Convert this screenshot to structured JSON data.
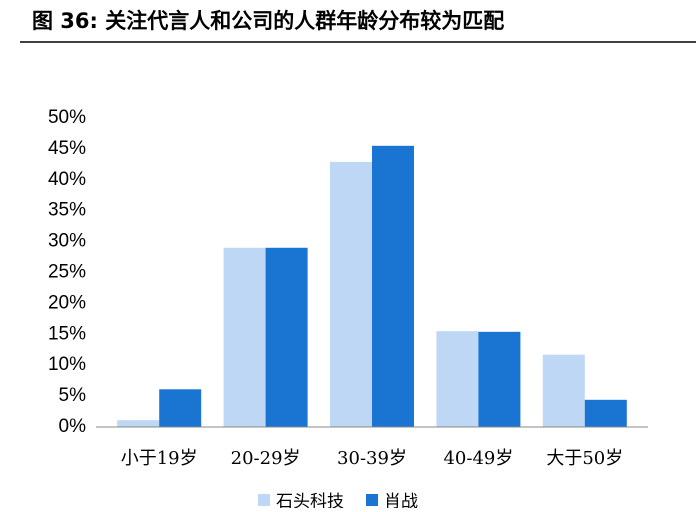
{
  "chart_data": {
    "type": "bar",
    "title": "图 36:  关注代言人和公司的人群年龄分布较为匹配",
    "categories": [
      "小于19岁",
      "20-29岁",
      "30-39岁",
      "40-49岁",
      "大于50岁"
    ],
    "series": [
      {
        "name": "石头科技",
        "color": "#bdd7f5",
        "values": [
          1.1,
          29.0,
          42.9,
          15.5,
          11.7
        ]
      },
      {
        "name": "肖战",
        "color": "#1a75d2",
        "values": [
          6.1,
          29.0,
          45.5,
          15.4,
          4.4
        ]
      }
    ],
    "ylim": [
      0,
      50
    ],
    "yticks": [
      {
        "value": 0,
        "label": "0%"
      },
      {
        "value": 5,
        "label": "5%"
      },
      {
        "value": 10,
        "label": "10%"
      },
      {
        "value": 15,
        "label": "15%"
      },
      {
        "value": 20,
        "label": "20%"
      },
      {
        "value": 25,
        "label": "25%"
      },
      {
        "value": 30,
        "label": "30%"
      },
      {
        "value": 35,
        "label": "35%"
      },
      {
        "value": 40,
        "label": "40%"
      },
      {
        "value": 45,
        "label": "45%"
      },
      {
        "value": 50,
        "label": "50%"
      }
    ],
    "grid": false
  }
}
